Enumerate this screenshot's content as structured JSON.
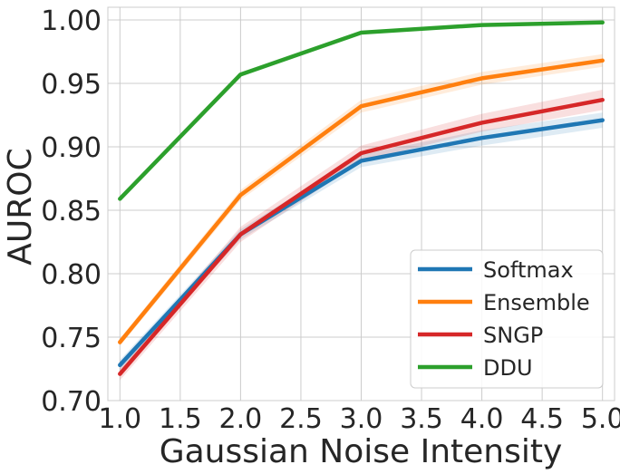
{
  "chart_data": {
    "type": "line",
    "title": "",
    "xlabel": "Gaussian Noise Intensity",
    "ylabel": "AUROC",
    "x": [
      1.0,
      2.0,
      3.0,
      4.0,
      5.0
    ],
    "xlim": [
      0.9,
      5.1
    ],
    "ylim": [
      0.7,
      1.01
    ],
    "xticks": [
      1.0,
      1.5,
      2.0,
      2.5,
      3.0,
      3.5,
      4.0,
      4.5,
      5.0
    ],
    "yticks": [
      0.7,
      0.75,
      0.8,
      0.85,
      0.9,
      0.95,
      1.0
    ],
    "xtick_labels": [
      "1.0",
      "1.5",
      "2.0",
      "2.5",
      "3.0",
      "3.5",
      "4.0",
      "4.5",
      "5.0"
    ],
    "ytick_labels": [
      "0.70",
      "0.75",
      "0.80",
      "0.85",
      "0.90",
      "0.95",
      "1.00"
    ],
    "grid": true,
    "legend_position": "bottom-right",
    "series": [
      {
        "name": "Softmax",
        "color": "#1f77b4",
        "values": [
          0.728,
          0.831,
          0.889,
          0.907,
          0.921
        ],
        "band": [
          0.004,
          0.004,
          0.005,
          0.006,
          0.006
        ]
      },
      {
        "name": "Ensemble",
        "color": "#ff7f0e",
        "values": [
          0.746,
          0.862,
          0.932,
          0.954,
          0.968
        ],
        "band": [
          0.003,
          0.004,
          0.005,
          0.005,
          0.005
        ]
      },
      {
        "name": "SNGP",
        "color": "#d62728",
        "values": [
          0.721,
          0.831,
          0.895,
          0.919,
          0.937
        ],
        "band": [
          0.005,
          0.006,
          0.006,
          0.007,
          0.008
        ]
      },
      {
        "name": "DDU",
        "color": "#2ca02c",
        "values": [
          0.859,
          0.957,
          0.99,
          0.996,
          0.998
        ],
        "band": [
          0.0,
          0.0,
          0.0,
          0.0,
          0.0
        ]
      }
    ]
  }
}
